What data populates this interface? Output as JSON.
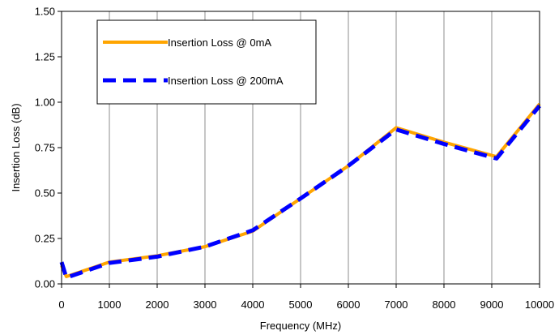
{
  "chart_data": {
    "type": "line",
    "title": "",
    "xlabel": "Frequency (MHz)",
    "ylabel": "Insertion Loss (dB)",
    "xlim": [
      0,
      10000
    ],
    "ylim": [
      0,
      1.5
    ],
    "x_ticks": [
      0,
      1000,
      2000,
      3000,
      4000,
      5000,
      6000,
      7000,
      8000,
      9000,
      10000
    ],
    "y_ticks": [
      "0.00",
      "0.25",
      "0.50",
      "0.75",
      "1.00",
      "1.25",
      "1.50"
    ],
    "grid": "vertical",
    "legend_position": "top-left",
    "series": [
      {
        "name": "Insertion Loss @ 0mA",
        "color": "#FFA500",
        "style": "solid",
        "x": [
          0,
          100,
          1000,
          2000,
          3000,
          4000,
          5000,
          6000,
          7000,
          8000,
          9100,
          10000
        ],
        "y": [
          0.1,
          0.04,
          0.12,
          0.155,
          0.205,
          0.29,
          0.47,
          0.65,
          0.86,
          0.78,
          0.7,
          0.99
        ]
      },
      {
        "name": "Insertion Loss @ 200mA",
        "color": "#0000FF",
        "style": "dashed",
        "x": [
          0,
          100,
          1000,
          2000,
          3000,
          4000,
          5000,
          6000,
          7000,
          8000,
          9100,
          10000
        ],
        "y": [
          0.12,
          0.035,
          0.115,
          0.15,
          0.205,
          0.295,
          0.47,
          0.65,
          0.85,
          0.77,
          0.69,
          0.98
        ]
      }
    ]
  }
}
